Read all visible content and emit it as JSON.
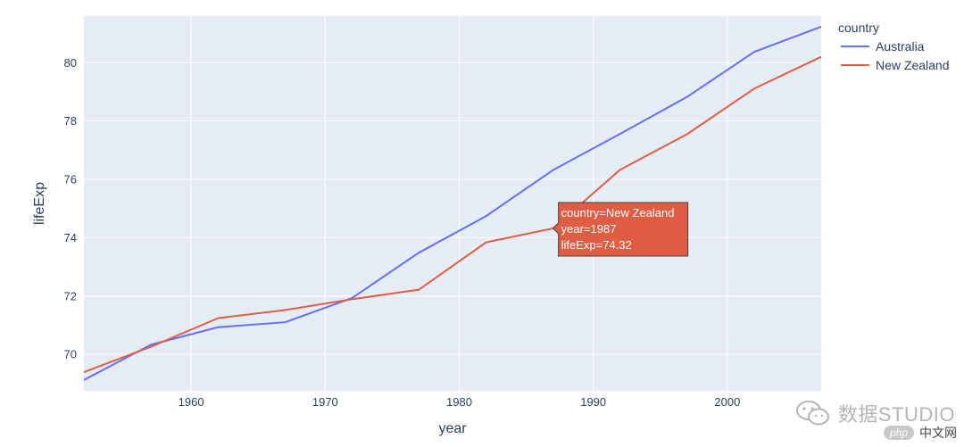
{
  "chart_data": {
    "type": "line",
    "xlabel": "year",
    "ylabel": "lifeExp",
    "xlim": [
      1952,
      2007
    ],
    "ylim": [
      68.75,
      81.6
    ],
    "x_ticks": [
      1960,
      1970,
      1980,
      1990,
      2000
    ],
    "y_ticks": [
      70,
      72,
      74,
      76,
      78,
      80
    ],
    "grid": true,
    "legend": {
      "title": "country",
      "placement": "top-right"
    },
    "series": [
      {
        "name": "Australia",
        "color": "#636efa",
        "x": [
          1952,
          1957,
          1962,
          1967,
          1972,
          1977,
          1982,
          1987,
          1992,
          1997,
          2002,
          2007
        ],
        "y": [
          69.12,
          70.33,
          70.93,
          71.1,
          71.93,
          73.49,
          74.74,
          76.32,
          77.56,
          78.83,
          80.37,
          81.235
        ]
      },
      {
        "name": "New Zealand",
        "color": "#e05d44",
        "x": [
          1952,
          1957,
          1962,
          1967,
          1972,
          1977,
          1982,
          1987,
          1992,
          1997,
          2002,
          2007
        ],
        "y": [
          69.39,
          70.26,
          71.24,
          71.52,
          71.89,
          72.22,
          73.84,
          74.32,
          76.33,
          77.55,
          79.11,
          80.204
        ]
      }
    ],
    "hover": {
      "series": "New Zealand",
      "x": 1987,
      "y": 74.32,
      "lines": [
        "country=New Zealand",
        "year=1987",
        "lifeExp=74.32"
      ]
    }
  },
  "watermark": {
    "brand": "数据STUDIO",
    "site_badge": "php",
    "site_text": "中文网"
  },
  "colors": {
    "plot_bg": "#e5ecf6",
    "grid": "#ffffff",
    "text": "#2a3f5f"
  }
}
